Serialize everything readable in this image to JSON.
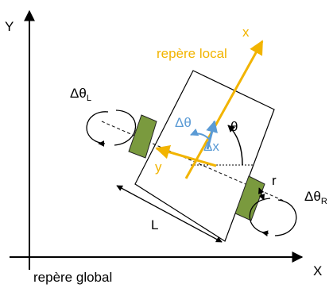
{
  "global_frame": {
    "caption": "repère global",
    "x_axis": "X",
    "y_axis": "Y"
  },
  "local_frame": {
    "caption": "repère local",
    "x_axis": "x",
    "y_axis": "y"
  },
  "labels": {
    "theta": "θ",
    "delta_theta": "Δθ",
    "delta_x": "Δx",
    "wheel_base": "L",
    "wheel_radius": "r",
    "delta_theta_left_base": "Δθ",
    "delta_theta_left_sub": "L",
    "delta_theta_right_base": "Δθ",
    "delta_theta_right_sub": "R"
  },
  "colors": {
    "local_frame": "#F2B400",
    "increment": "#5B9BD5",
    "wheel": "#7A9A3E",
    "line": "#000000"
  }
}
